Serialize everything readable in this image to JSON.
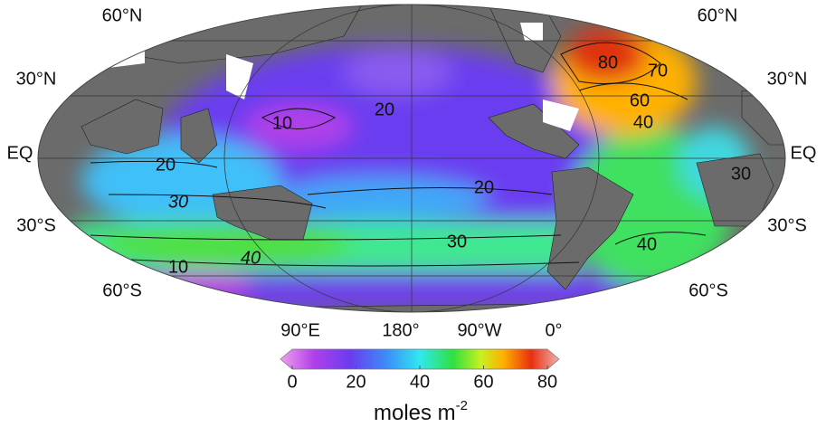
{
  "map": {
    "lat_labels_left": [
      "60°N",
      "30°N",
      "EQ",
      "30°S",
      "60°S"
    ],
    "lat_labels_right": [
      "60°N",
      "30°N",
      "EQ",
      "30°S",
      "60°S"
    ],
    "lon_labels": [
      "90°E",
      "180°",
      "90°W",
      "0°"
    ],
    "contour_labels": [
      10,
      20,
      20,
      20,
      30,
      30,
      10,
      40,
      30,
      40,
      80,
      70,
      60,
      40
    ],
    "colorbar": {
      "range": [
        0,
        80
      ],
      "ticks": [
        0,
        20,
        40,
        60,
        80
      ],
      "unit_label": "moles m",
      "unit_exponent": "-2"
    }
  }
}
